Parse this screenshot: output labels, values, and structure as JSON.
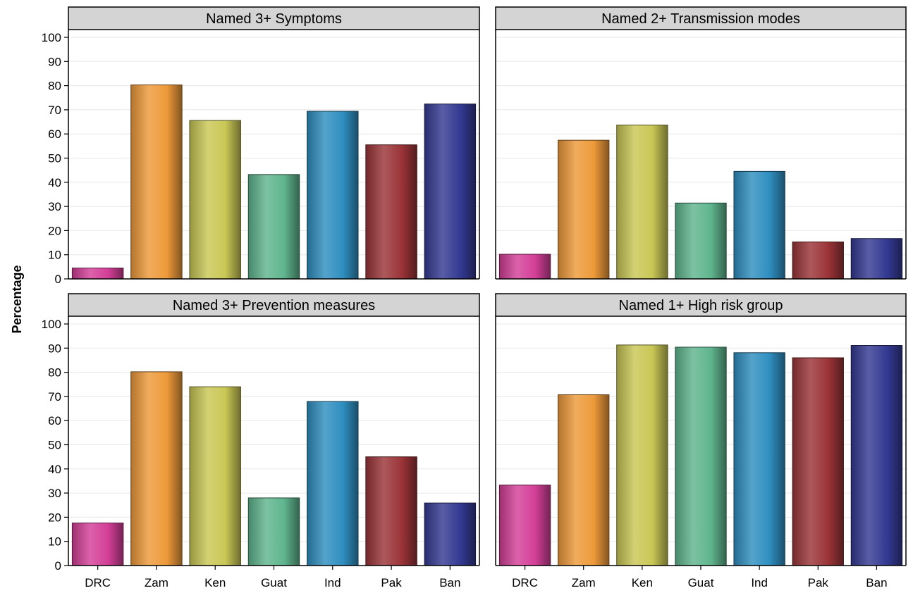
{
  "chart_data": {
    "type": "bar",
    "ylabel": "Percentage",
    "ylim": [
      0,
      100
    ],
    "yticks": [
      0,
      10,
      20,
      30,
      40,
      50,
      60,
      70,
      80,
      90,
      100
    ],
    "grid": true,
    "categories": [
      "DRC",
      "Zam",
      "Ken",
      "Guat",
      "Ind",
      "Pak",
      "Ban"
    ],
    "colors": [
      "#d43f98",
      "#ee9a3a",
      "#c9c755",
      "#5fb58e",
      "#2f8fc0",
      "#9b3438",
      "#343a92"
    ],
    "panels": [
      {
        "title": "Named 3+ Symptoms",
        "values": [
          4.5,
          80.3,
          65.6,
          43.2,
          69.4,
          55.5,
          72.4
        ]
      },
      {
        "title": "Named 2+ Transmission modes",
        "values": [
          10.2,
          57.4,
          63.7,
          31.4,
          44.5,
          15.3,
          16.7
        ]
      },
      {
        "title": "Named 3+ Prevention measures",
        "values": [
          17.6,
          80.2,
          74.0,
          28.0,
          67.9,
          45.0,
          25.9
        ]
      },
      {
        "title": "Named 1+ High risk group",
        "values": [
          33.3,
          70.7,
          91.3,
          90.4,
          88.1,
          86.0,
          91.1
        ]
      }
    ]
  }
}
